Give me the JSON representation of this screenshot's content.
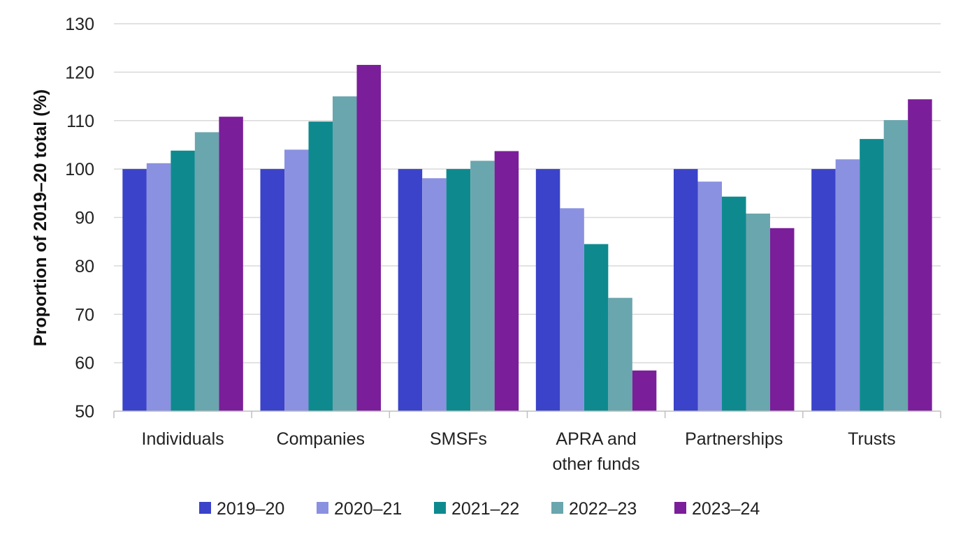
{
  "chart_data": {
    "type": "bar",
    "title": "",
    "xlabel": "",
    "ylabel": "Proportion of 2019–20 total (%)",
    "ylim": [
      50,
      130
    ],
    "yticks": [
      50,
      60,
      70,
      80,
      90,
      100,
      110,
      120,
      130
    ],
    "grid": true,
    "legend_position": "bottom",
    "categories": [
      [
        "Individuals"
      ],
      [
        "Companies"
      ],
      [
        "SMSFs"
      ],
      [
        "APRA and",
        "other funds"
      ],
      [
        "Partnerships"
      ],
      [
        "Trusts"
      ]
    ],
    "series": [
      {
        "name": "2019–20",
        "color": "#3A43C9",
        "values": [
          100,
          100,
          100,
          100,
          100,
          100
        ]
      },
      {
        "name": "2020–21",
        "color": "#8A91E0",
        "values": [
          101.2,
          104.0,
          98.1,
          91.9,
          97.4,
          102.0
        ]
      },
      {
        "name": "2021–22",
        "color": "#0E8A8F",
        "values": [
          103.8,
          109.8,
          100.0,
          84.5,
          94.3,
          106.2
        ]
      },
      {
        "name": "2022–23",
        "color": "#6AA6AD",
        "values": [
          107.6,
          115.0,
          101.7,
          73.4,
          90.8,
          110.1
        ]
      },
      {
        "name": "2023–24",
        "color": "#7B1E9A",
        "values": [
          110.8,
          121.5,
          103.7,
          58.4,
          87.8,
          114.4
        ]
      }
    ]
  }
}
